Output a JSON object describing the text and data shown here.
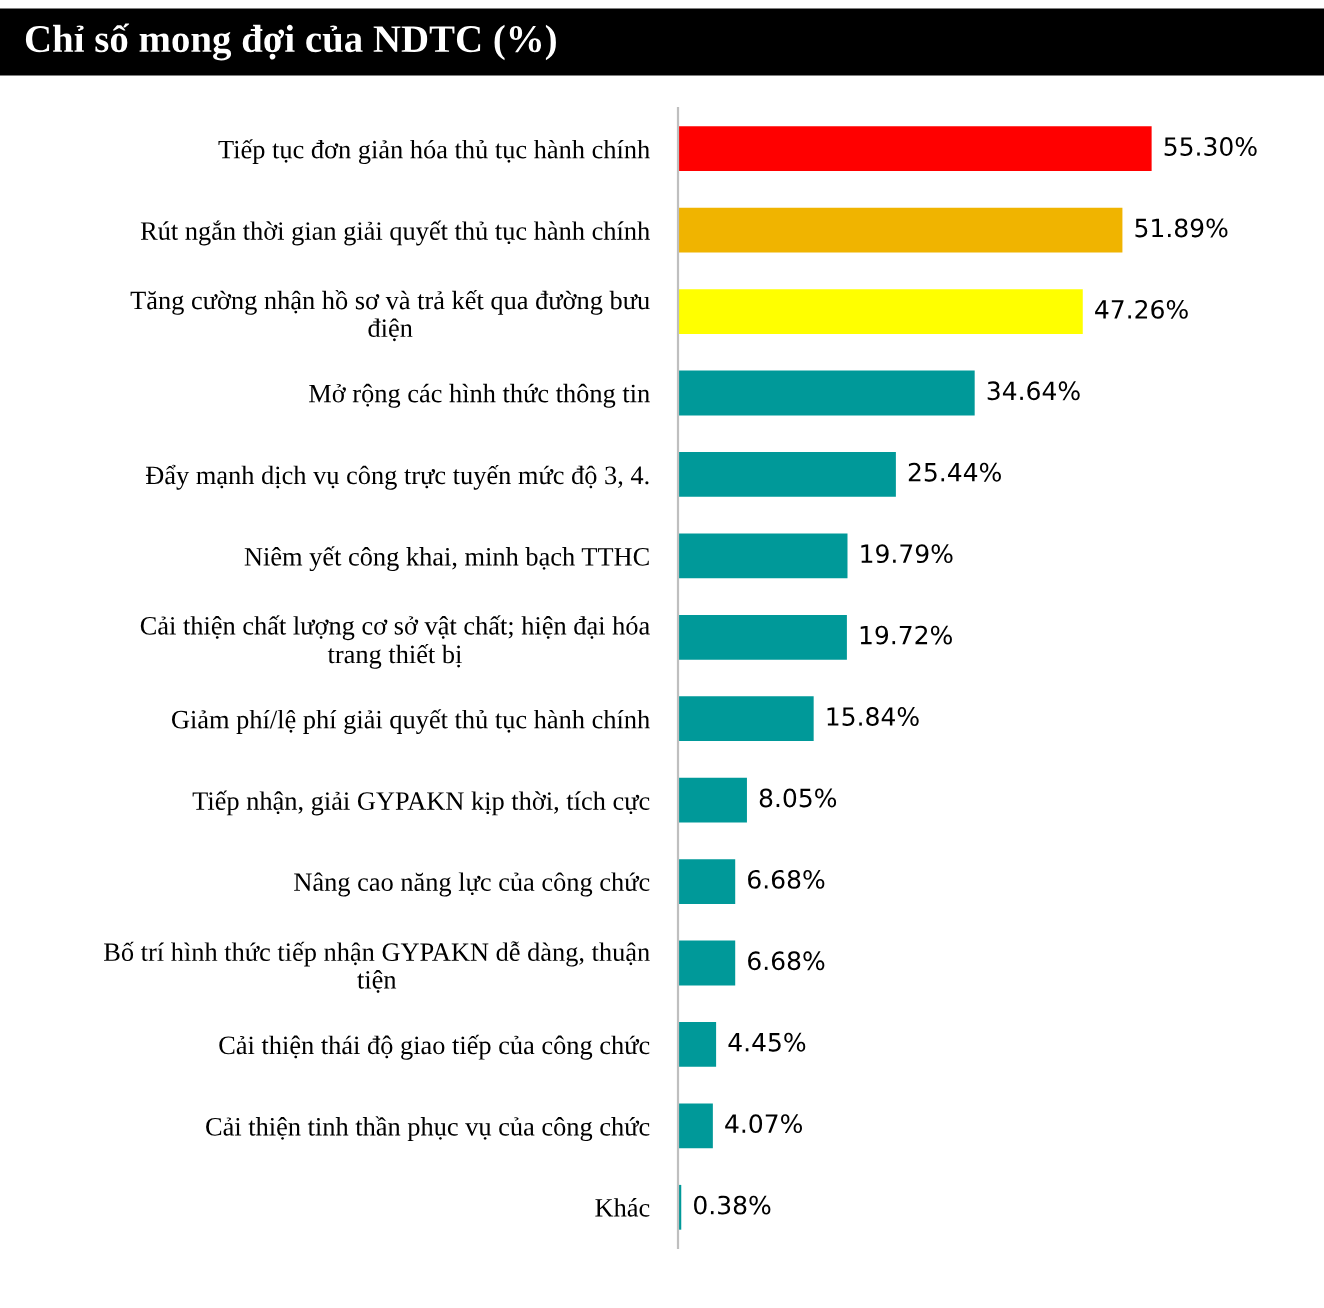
{
  "chart_data": {
    "type": "bar",
    "orientation": "horizontal",
    "title": "Chỉ số mong đợi của NDTC (%)",
    "categories": [
      "Tiếp tục đơn giản hóa thủ tục hành chính",
      "Rút ngắn thời gian giải quyết thủ tục hành chính",
      "Tăng cường nhận hồ sơ và trả kết qua đường bưu\nđiện",
      "Mở rộng các hình thức thông tin",
      "Đẩy mạnh dịch vụ công trực tuyến mức độ 3, 4.",
      "Niêm yết công khai, minh bạch TTHC",
      "Cải thiện chất lượng cơ sở vật chất; hiện đại hóa\ntrang thiết bị",
      "Giảm phí/lệ phí giải quyết thủ tục hành chính",
      "Tiếp nhận, giải GYPAKN kịp thời, tích cực",
      "Nâng cao năng lực của công chức",
      "Bố trí hình thức tiếp nhận GYPAKN dễ dàng, thuận\ntiện",
      "Cải thiện thái độ giao tiếp của công chức",
      "Cải thiện tinh thần phục vụ của công chức",
      "Khác"
    ],
    "values": [
      55.3,
      51.89,
      47.26,
      34.64,
      25.44,
      19.79,
      19.72,
      15.84,
      8.05,
      6.68,
      6.68,
      4.45,
      4.07,
      0.38
    ],
    "value_labels": [
      "55.30%",
      "51.89%",
      "47.26%",
      "34.64%",
      "25.44%",
      "19.79%",
      "19.72%",
      "15.84%",
      "8.05%",
      "6.68%",
      "6.68%",
      "4.45%",
      "4.07%",
      "0.38%"
    ],
    "colors": [
      "#ff0000",
      "#f0b400",
      "#ffff00",
      "#009999",
      "#009999",
      "#009999",
      "#009999",
      "#009999",
      "#009999",
      "#009999",
      "#009999",
      "#009999",
      "#009999",
      "#009999"
    ],
    "grid": false,
    "legend": false
  }
}
